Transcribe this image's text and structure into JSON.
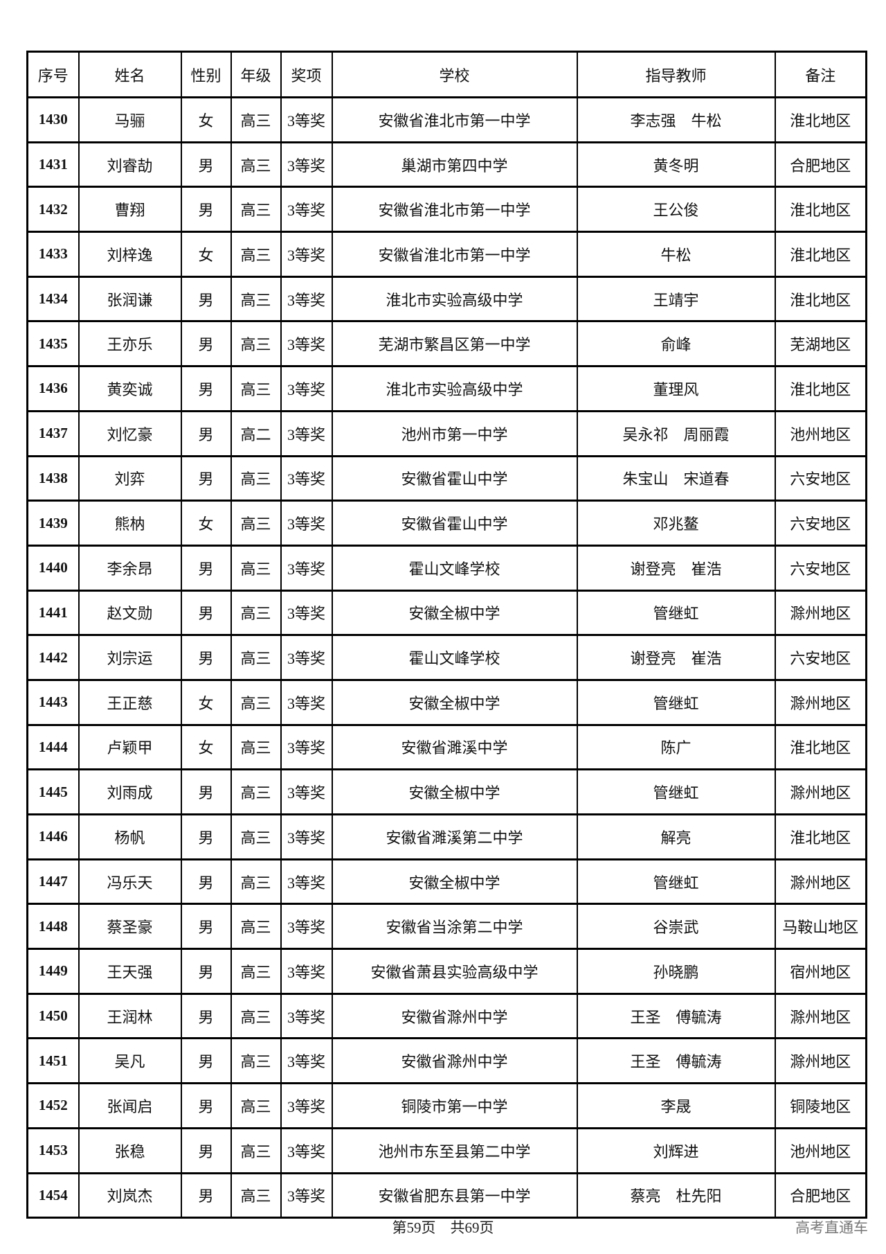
{
  "table": {
    "headers": [
      "序号",
      "姓名",
      "性别",
      "年级",
      "奖项",
      "学校",
      "指导教师",
      "备注"
    ],
    "rows": [
      [
        "1430",
        "马骊",
        "女",
        "高三",
        "3等奖",
        "安徽省淮北市第一中学",
        "李志强　牛松",
        "淮北地区"
      ],
      [
        "1431",
        "刘睿劼",
        "男",
        "高三",
        "3等奖",
        "巢湖市第四中学",
        "黄冬明",
        "合肥地区"
      ],
      [
        "1432",
        "曹翔",
        "男",
        "高三",
        "3等奖",
        "安徽省淮北市第一中学",
        "王公俊",
        "淮北地区"
      ],
      [
        "1433",
        "刘梓逸",
        "女",
        "高三",
        "3等奖",
        "安徽省淮北市第一中学",
        "牛松",
        "淮北地区"
      ],
      [
        "1434",
        "张润谦",
        "男",
        "高三",
        "3等奖",
        "淮北市实验高级中学",
        "王靖宇",
        "淮北地区"
      ],
      [
        "1435",
        "王亦乐",
        "男",
        "高三",
        "3等奖",
        "芜湖市繁昌区第一中学",
        "俞峰",
        "芜湖地区"
      ],
      [
        "1436",
        "黄奕诚",
        "男",
        "高三",
        "3等奖",
        "淮北市实验高级中学",
        "董理风",
        "淮北地区"
      ],
      [
        "1437",
        "刘忆豪",
        "男",
        "高二",
        "3等奖",
        "池州市第一中学",
        "吴永祁　周丽霞",
        "池州地区"
      ],
      [
        "1438",
        "刘弈",
        "男",
        "高三",
        "3等奖",
        "安徽省霍山中学",
        "朱宝山　宋道春",
        "六安地区"
      ],
      [
        "1439",
        "熊枘",
        "女",
        "高三",
        "3等奖",
        "安徽省霍山中学",
        "邓兆鳌",
        "六安地区"
      ],
      [
        "1440",
        "李余昂",
        "男",
        "高三",
        "3等奖",
        "霍山文峰学校",
        "谢登亮　崔浩",
        "六安地区"
      ],
      [
        "1441",
        "赵文勋",
        "男",
        "高三",
        "3等奖",
        "安徽全椒中学",
        "管继虹",
        "滁州地区"
      ],
      [
        "1442",
        "刘宗运",
        "男",
        "高三",
        "3等奖",
        "霍山文峰学校",
        "谢登亮　崔浩",
        "六安地区"
      ],
      [
        "1443",
        "王正慈",
        "女",
        "高三",
        "3等奖",
        "安徽全椒中学",
        "管继虹",
        "滁州地区"
      ],
      [
        "1444",
        "卢颖甲",
        "女",
        "高三",
        "3等奖",
        "安徽省濉溪中学",
        "陈广",
        "淮北地区"
      ],
      [
        "1445",
        "刘雨成",
        "男",
        "高三",
        "3等奖",
        "安徽全椒中学",
        "管继虹",
        "滁州地区"
      ],
      [
        "1446",
        "杨帆",
        "男",
        "高三",
        "3等奖",
        "安徽省濉溪第二中学",
        "解亮",
        "淮北地区"
      ],
      [
        "1447",
        "冯乐天",
        "男",
        "高三",
        "3等奖",
        "安徽全椒中学",
        "管继虹",
        "滁州地区"
      ],
      [
        "1448",
        "蔡圣豪",
        "男",
        "高三",
        "3等奖",
        "安徽省当涂第二中学",
        "谷崇武",
        "马鞍山地区"
      ],
      [
        "1449",
        "王天强",
        "男",
        "高三",
        "3等奖",
        "安徽省萧县实验高级中学",
        "孙晓鹏",
        "宿州地区"
      ],
      [
        "1450",
        "王润林",
        "男",
        "高三",
        "3等奖",
        "安徽省滁州中学",
        "王圣　傅毓涛",
        "滁州地区"
      ],
      [
        "1451",
        "吴凡",
        "男",
        "高三",
        "3等奖",
        "安徽省滁州中学",
        "王圣　傅毓涛",
        "滁州地区"
      ],
      [
        "1452",
        "张闻启",
        "男",
        "高三",
        "3等奖",
        "铜陵市第一中学",
        "李晟",
        "铜陵地区"
      ],
      [
        "1453",
        "张稳",
        "男",
        "高三",
        "3等奖",
        "池州市东至县第二中学",
        "刘辉进",
        "池州地区"
      ],
      [
        "1454",
        "刘岚杰",
        "男",
        "高三",
        "3等奖",
        "安徽省肥东县第一中学",
        "蔡亮　杜先阳",
        "合肥地区"
      ]
    ]
  },
  "footer": {
    "page_info": "第59页　共69页"
  },
  "watermark": "高考直通车"
}
